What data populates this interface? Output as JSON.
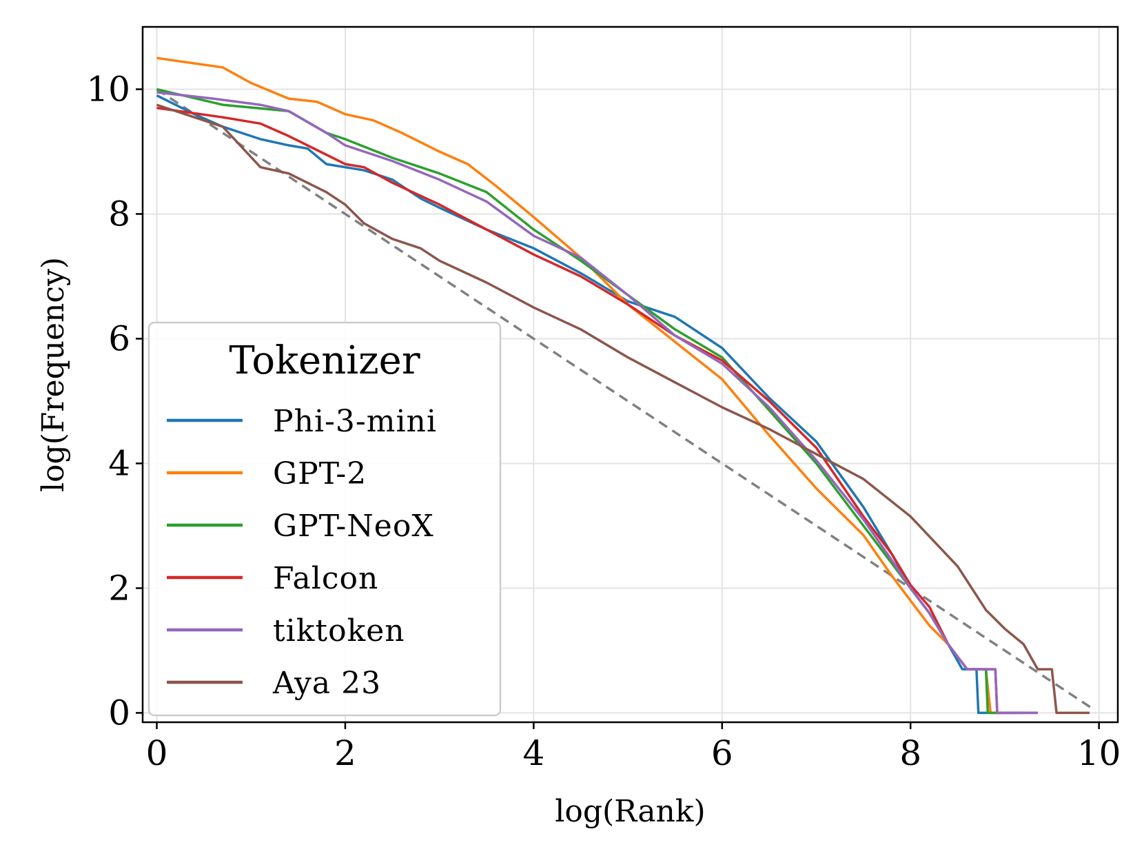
{
  "chart_data": {
    "type": "line",
    "title": "",
    "xlabel": "log(Rank)",
    "ylabel": "log(Frequency)",
    "xlim": [
      -0.15,
      10.2
    ],
    "ylim": [
      -0.15,
      11.0
    ],
    "xticks": [
      0,
      2,
      4,
      6,
      8,
      10
    ],
    "yticks": [
      0,
      2,
      4,
      6,
      8,
      10
    ],
    "grid": true,
    "legend": {
      "title": "Tokenizer",
      "position": "center-left"
    },
    "colors": {
      "Phi-3-mini": "#1f77b4",
      "GPT-2": "#ff7f0e",
      "GPT-NeoX": "#2ca02c",
      "Falcon": "#d62728",
      "tiktoken": "#9467bd",
      "Aya 23": "#8c564b",
      "reference": "#808080"
    },
    "reference_line": {
      "name": "slope -1",
      "x": [
        0,
        9.95
      ],
      "y": [
        10.0,
        0.05
      ],
      "style": "dashed"
    },
    "series": [
      {
        "name": "Phi-3-mini",
        "x": [
          0,
          0.4,
          0.7,
          1.1,
          1.4,
          1.6,
          1.8,
          2.0,
          2.2,
          2.5,
          2.8,
          3.0,
          3.5,
          4.0,
          4.5,
          5.0,
          5.5,
          6.0,
          6.5,
          7.0,
          7.5,
          7.8,
          8.0,
          8.2,
          8.4,
          8.55,
          8.7,
          8.72,
          9.0
        ],
        "y": [
          9.9,
          9.6,
          9.4,
          9.2,
          9.1,
          9.05,
          8.8,
          8.75,
          8.7,
          8.55,
          8.25,
          8.1,
          7.75,
          7.45,
          7.05,
          6.6,
          6.35,
          5.85,
          5.05,
          4.35,
          3.3,
          2.55,
          2.0,
          1.6,
          1.1,
          0.7,
          0.7,
          0.0,
          0.0
        ]
      },
      {
        "name": "GPT-2",
        "x": [
          0,
          0.7,
          1.0,
          1.4,
          1.7,
          2.0,
          2.3,
          2.6,
          3.0,
          3.3,
          3.6,
          4.0,
          4.5,
          5.0,
          5.5,
          6.0,
          6.5,
          7.0,
          7.5,
          7.8,
          8.0,
          8.2,
          8.4,
          8.6,
          8.8,
          8.85,
          9.2
        ],
        "y": [
          10.5,
          10.35,
          10.1,
          9.85,
          9.8,
          9.6,
          9.5,
          9.3,
          9.0,
          8.8,
          8.45,
          7.95,
          7.3,
          6.55,
          5.95,
          5.35,
          4.45,
          3.6,
          2.85,
          2.2,
          1.8,
          1.4,
          1.1,
          0.7,
          0.7,
          0.0,
          0.0
        ]
      },
      {
        "name": "GPT-NeoX",
        "x": [
          0,
          0.7,
          1.4,
          1.8,
          2.0,
          2.5,
          3.0,
          3.5,
          4.0,
          4.5,
          5.0,
          5.5,
          6.0,
          6.5,
          7.0,
          7.5,
          7.8,
          8.0,
          8.2,
          8.4,
          8.6,
          8.8,
          8.82,
          9.1
        ],
        "y": [
          10.0,
          9.75,
          9.65,
          9.3,
          9.2,
          8.9,
          8.65,
          8.35,
          7.75,
          7.25,
          6.7,
          6.15,
          5.7,
          4.85,
          4.0,
          3.0,
          2.4,
          2.0,
          1.6,
          1.1,
          0.7,
          0.7,
          0.0,
          0.0
        ]
      },
      {
        "name": "Falcon",
        "x": [
          0,
          0.7,
          1.1,
          1.4,
          1.8,
          2.0,
          2.2,
          2.5,
          3.0,
          3.5,
          4.0,
          4.5,
          5.0,
          5.5,
          6.0,
          6.5,
          7.0,
          7.5,
          7.8,
          8.0,
          8.2,
          8.4,
          8.6,
          8.9,
          8.92,
          9.35
        ],
        "y": [
          9.7,
          9.55,
          9.45,
          9.25,
          8.95,
          8.8,
          8.75,
          8.5,
          8.15,
          7.75,
          7.35,
          7.0,
          6.55,
          6.05,
          5.65,
          5.0,
          4.25,
          3.15,
          2.55,
          2.05,
          1.7,
          1.1,
          0.7,
          0.7,
          0.0,
          0.0
        ]
      },
      {
        "name": "tiktoken",
        "x": [
          0,
          0.6,
          1.1,
          1.4,
          1.8,
          2.0,
          2.2,
          2.5,
          3.0,
          3.5,
          4.0,
          4.5,
          5.0,
          5.5,
          6.0,
          6.5,
          7.0,
          7.5,
          7.8,
          8.0,
          8.2,
          8.4,
          8.6,
          8.9,
          8.92,
          9.35
        ],
        "y": [
          9.95,
          9.85,
          9.75,
          9.65,
          9.3,
          9.1,
          9.0,
          8.85,
          8.55,
          8.2,
          7.65,
          7.3,
          6.7,
          6.05,
          5.6,
          4.9,
          4.05,
          3.1,
          2.45,
          2.0,
          1.6,
          1.1,
          0.7,
          0.7,
          0.0,
          0.0
        ]
      },
      {
        "name": "Aya 23",
        "x": [
          0,
          0.7,
          1.1,
          1.4,
          1.8,
          2.0,
          2.2,
          2.5,
          2.8,
          3.0,
          3.5,
          4.0,
          4.5,
          5.0,
          5.5,
          6.0,
          6.5,
          7.0,
          7.5,
          8.0,
          8.5,
          8.8,
          9.0,
          9.2,
          9.35,
          9.5,
          9.55,
          9.9
        ],
        "y": [
          9.75,
          9.4,
          8.75,
          8.65,
          8.35,
          8.15,
          7.85,
          7.6,
          7.45,
          7.25,
          6.9,
          6.5,
          6.15,
          5.7,
          5.3,
          4.9,
          4.55,
          4.15,
          3.75,
          3.15,
          2.35,
          1.65,
          1.35,
          1.1,
          0.7,
          0.7,
          0.0,
          0.0
        ]
      }
    ],
    "legend_entries": [
      {
        "series": "Phi-3-mini",
        "label": "Phi-3-mini"
      },
      {
        "series": "GPT-2",
        "label": "GPT-2"
      },
      {
        "series": "GPT-NeoX",
        "label": "GPT-NeoX"
      },
      {
        "series": "Falcon",
        "label": "Falcon"
      },
      {
        "series": "tiktoken",
        "label": "tiktoken"
      },
      {
        "series": "Aya 23",
        "label": "Aya 23"
      }
    ]
  }
}
